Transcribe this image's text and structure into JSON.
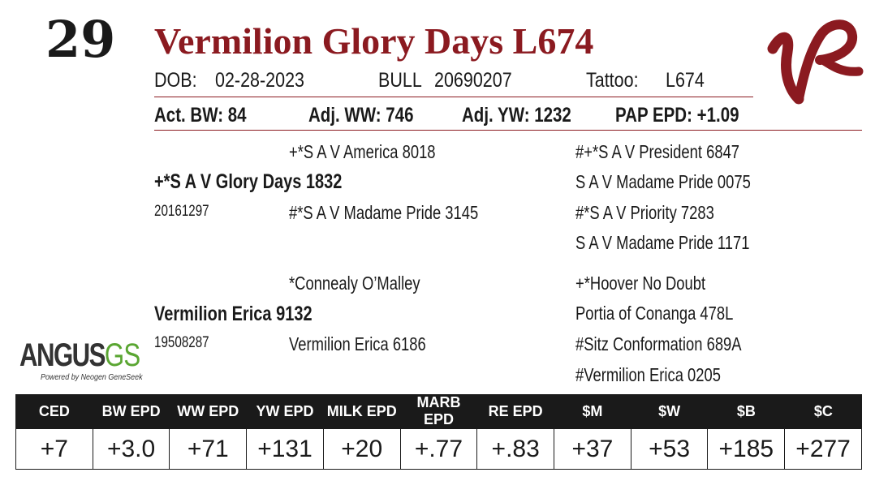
{
  "lot_number": "29",
  "title": "Vermilion Glory Days L674",
  "info": {
    "dob_label": "DOB:",
    "dob": "02-28-2023",
    "sex": "BULL",
    "reg_no": "20690207",
    "tattoo_label": "Tattoo:",
    "tattoo": "L674"
  },
  "performance": {
    "act_bw": "Act. BW: 84",
    "adj_ww": "Adj. WW: 746",
    "adj_yw": "Adj. YW: 1232",
    "pap_epd": "PAP EPD: +1.09"
  },
  "pedigree": {
    "sire": {
      "name": "+*S A V Glory Days 1832",
      "reg": "20161297"
    },
    "sire_sire": "+*S A V America 8018",
    "sire_dam": "#*S A V Madame Pride 3145",
    "sire_sire_sire": "#+*S A V President 6847",
    "sire_sire_dam": "S A V Madame Pride 0075",
    "sire_dam_sire": "#*S A V Priority 7283",
    "sire_dam_dam": "S A V Madame Pride 1171",
    "dam": {
      "name": "Vermilion Erica 9132",
      "reg": "19508287"
    },
    "dam_sire": "*Connealy O’Malley",
    "dam_dam": "Vermilion Erica 6186",
    "dam_sire_sire": "+*Hoover No Doubt",
    "dam_sire_dam": "Portia of Conanga 478L",
    "dam_dam_sire": "#Sitz Conformation 689A",
    "dam_dam_dam": "#Vermilion Erica 0205"
  },
  "logo": {
    "angus": "ANGUS",
    "gs": "GS",
    "tagline": "Powered by Neogen GeneSeek",
    "brand_color": "#8b1a20",
    "gs_color": "#5aa632"
  },
  "epd_table": {
    "headers": [
      "CED",
      "BW EPD",
      "WW EPD",
      "YW EPD",
      "MILK EPD",
      "MARB EPD",
      "RE EPD",
      "$M",
      "$W",
      "$B",
      "$C"
    ],
    "values": [
      "+7",
      "+3.0",
      "+71",
      "+131",
      "+20",
      "+.77",
      "+.83",
      "+37",
      "+53",
      "+185",
      "+277"
    ]
  }
}
